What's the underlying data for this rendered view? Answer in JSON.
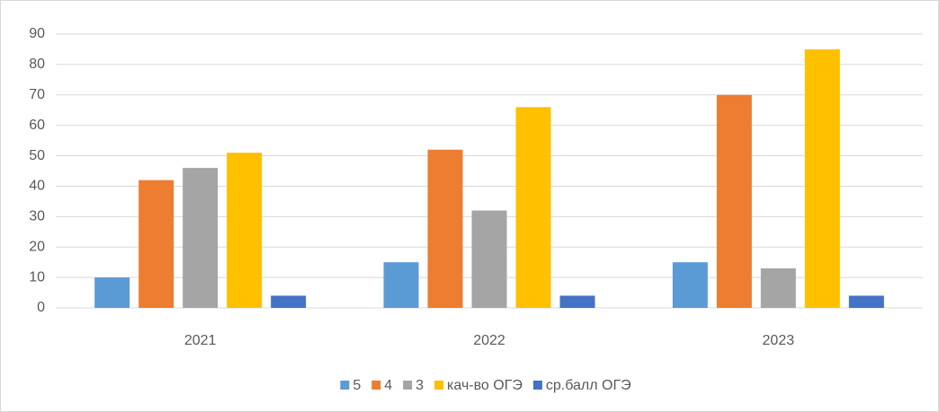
{
  "chart_data": {
    "type": "bar",
    "categories": [
      "2021",
      "2022",
      "2023"
    ],
    "series": [
      {
        "name": "5",
        "color": "#5b9bd5",
        "values": [
          10,
          15,
          15
        ]
      },
      {
        "name": "4",
        "color": "#ed7d31",
        "values": [
          42,
          52,
          70
        ]
      },
      {
        "name": "3",
        "color": "#a5a5a5",
        "values": [
          46,
          32,
          13
        ]
      },
      {
        "name": "кач-во ОГЭ",
        "color": "#ffc000",
        "values": [
          51,
          66,
          85
        ]
      },
      {
        "name": "ср.балл ОГЭ",
        "color": "#4472c4",
        "values": [
          4,
          4,
          4
        ]
      }
    ],
    "ylim": [
      0,
      90
    ],
    "yticks": [
      0,
      10,
      20,
      30,
      40,
      50,
      60,
      70,
      80,
      90
    ],
    "grid": true,
    "legend": "bottom"
  }
}
